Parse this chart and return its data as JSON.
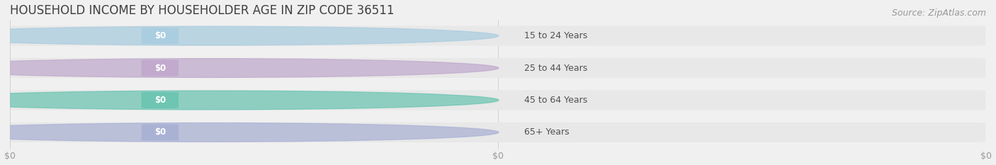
{
  "title": "HOUSEHOLD INCOME BY HOUSEHOLDER AGE IN ZIP CODE 36511",
  "source_text": "Source: ZipAtlas.com",
  "categories": [
    "15 to 24 Years",
    "25 to 44 Years",
    "45 to 64 Years",
    "65+ Years"
  ],
  "values": [
    0,
    0,
    0,
    0
  ],
  "bar_colors": [
    "#a8cce0",
    "#c0a8cc",
    "#68c4b0",
    "#a8b0d4"
  ],
  "background_color": "#f0f0f0",
  "bar_bg_color": "#e8e8e8",
  "title_color": "#404040",
  "label_color": "#505050",
  "tick_color": "#999999",
  "source_color": "#999999",
  "xlim": [
    0,
    1
  ],
  "bar_height": 0.62,
  "title_fontsize": 12,
  "label_fontsize": 9,
  "tick_fontsize": 9,
  "source_fontsize": 9,
  "xticks": [
    0.0,
    0.5,
    1.0
  ],
  "xtick_labels": [
    "$0",
    "$0",
    "$0"
  ]
}
